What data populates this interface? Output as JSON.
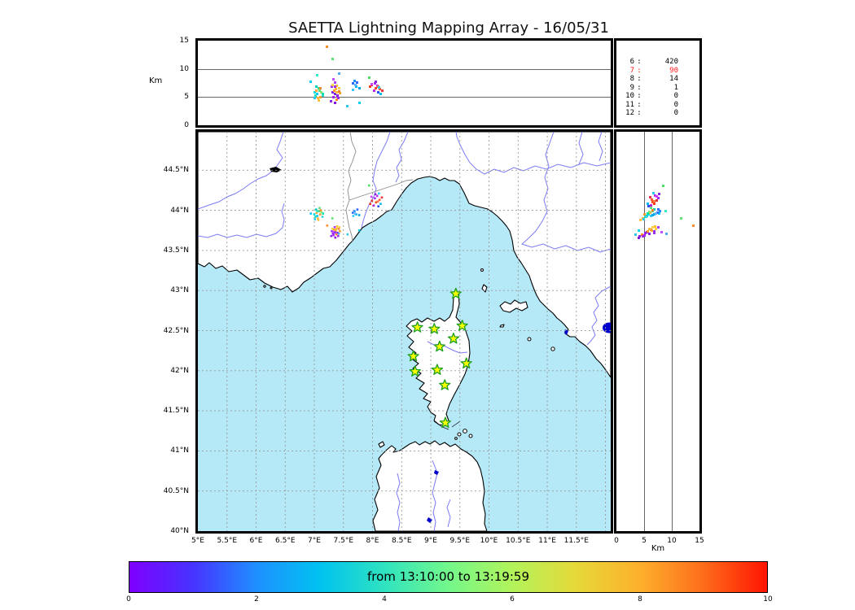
{
  "chart_data": {
    "type": "scatter",
    "title": "SAETTA Lightning Mapping Array - 16/05/31",
    "time_label": "from 13:10:00 to 13:19:59",
    "altitude_axis_label": "Km",
    "colors": {
      "sea": "#b5e9f8",
      "land": "#ffffff",
      "coast": "#000000",
      "river": "#7b7bf5",
      "border": "#8a8a8a",
      "grid": "#999999",
      "lake_dark": "#0000cc",
      "lake_black": "#000000",
      "station_fill": "#ffff00",
      "station_stroke": "#1f9f1f",
      "highlight_count": "#ff1a1a"
    },
    "top_panel": {
      "alt_range": [
        0,
        15
      ],
      "yticks": [
        [
          0,
          "0"
        ],
        [
          5,
          "5"
        ],
        [
          10,
          "10"
        ],
        [
          15,
          "15"
        ]
      ],
      "gridlines": [
        5,
        10
      ]
    },
    "counts_box": {
      "rows": [
        {
          "level": "6",
          "count": "420",
          "color": "#000000"
        },
        {
          "level": "7",
          "count": "90",
          "color": "#ff1a1a"
        },
        {
          "level": "8",
          "count": "14",
          "color": "#000000"
        },
        {
          "level": "9",
          "count": "1",
          "color": "#000000"
        },
        {
          "level": "10",
          "count": "0",
          "color": "#000000"
        },
        {
          "level": "11",
          "count": "0",
          "color": "#000000"
        },
        {
          "level": "12",
          "count": "0",
          "color": "#000000"
        }
      ]
    },
    "map_panel": {
      "lon_range": [
        5,
        12.09
      ],
      "lat_range": [
        40,
        44.98
      ],
      "grid_step": 0.5,
      "lon_ticks": [
        [
          5,
          "5°E"
        ],
        [
          5.5,
          "5.5°E"
        ],
        [
          6,
          "6°E"
        ],
        [
          6.5,
          "6.5°E"
        ],
        [
          7,
          "7°E"
        ],
        [
          7.5,
          "7.5°E"
        ],
        [
          8,
          "8°E"
        ],
        [
          8.5,
          "8.5°E"
        ],
        [
          9,
          "9°E"
        ],
        [
          9.5,
          "9.5°E"
        ],
        [
          10,
          "10°E"
        ],
        [
          10.5,
          "10.5°E"
        ],
        [
          11,
          "11°E"
        ],
        [
          11.5,
          "11.5°E"
        ]
      ],
      "lat_ticks": [
        [
          44.5,
          "44.5°N"
        ],
        [
          44,
          "44°N"
        ],
        [
          43.5,
          "43.5°N"
        ],
        [
          43,
          "43°N"
        ],
        [
          42.5,
          "42.5°N"
        ],
        [
          42,
          "42°N"
        ],
        [
          41.5,
          "41.5°N"
        ],
        [
          41,
          "41°N"
        ],
        [
          40.5,
          "40.5°N"
        ],
        [
          40,
          "40°N"
        ]
      ]
    },
    "right_panel": {
      "alt_range": [
        0,
        15
      ],
      "xticks": [
        [
          0,
          "0"
        ],
        [
          5,
          "5"
        ],
        [
          10,
          "10"
        ],
        [
          15,
          "15"
        ]
      ],
      "gridlines": [
        5,
        10
      ]
    },
    "colorbar": {
      "range": [
        0,
        10
      ],
      "ticks": [
        "0",
        "2",
        "4",
        "6",
        "8",
        "10"
      ],
      "colormap": "rainbow",
      "stops": [
        "#7f00ff",
        "#4733ff",
        "#1e90ff",
        "#00c3f0",
        "#2fe3c0",
        "#73f78b",
        "#b2f35b",
        "#e6d939",
        "#fdb02c",
        "#fd6d1b",
        "#ff1400"
      ]
    },
    "stations_lonlat": [
      [
        9.43,
        42.96
      ],
      [
        8.77,
        42.54
      ],
      [
        9.06,
        42.52
      ],
      [
        9.54,
        42.56
      ],
      [
        9.39,
        42.4
      ],
      [
        9.15,
        42.3
      ],
      [
        8.7,
        42.18
      ],
      [
        9.61,
        42.09
      ],
      [
        9.11,
        42.01
      ],
      [
        8.73,
        41.99
      ],
      [
        9.24,
        41.82
      ],
      [
        9.25,
        41.35
      ]
    ],
    "points": [
      [
        7.0,
        43.95,
        5.8,
        "#00d9e0"
      ],
      [
        7.02,
        43.92,
        5.2,
        "#27e3b2"
      ],
      [
        7.04,
        43.97,
        6.1,
        "#ffa53a"
      ],
      [
        7.06,
        43.9,
        4.8,
        "#ffb347"
      ],
      [
        7.08,
        43.99,
        6.5,
        "#39d98a"
      ],
      [
        7.05,
        43.93,
        5.5,
        "#00c8f0"
      ],
      [
        7.1,
        43.95,
        5.0,
        "#f09c2e"
      ],
      [
        7.12,
        43.98,
        5.9,
        "#8ae86e"
      ],
      [
        7.03,
        44.01,
        6.8,
        "#00d0c0"
      ],
      [
        7.07,
        43.88,
        4.4,
        "#ffc23e"
      ],
      [
        7.14,
        43.92,
        5.3,
        "#35d6d0"
      ],
      [
        7.09,
        44.03,
        6.2,
        "#63e07c"
      ],
      [
        7.01,
        43.89,
        4.9,
        "#22ccee"
      ],
      [
        7.11,
        44.0,
        6.6,
        "#f28c28"
      ],
      [
        7.15,
        43.96,
        5.6,
        "#00e0a8"
      ],
      [
        6.94,
        43.96,
        7.7,
        "#00ccff"
      ],
      [
        7.05,
        43.99,
        8.9,
        "#2ee8c8"
      ],
      [
        7.3,
        43.74,
        6.8,
        "#9b30ff"
      ],
      [
        7.32,
        43.71,
        5.9,
        "#8820ee"
      ],
      [
        7.34,
        43.76,
        6.2,
        "#ff9428"
      ],
      [
        7.33,
        43.69,
        5.0,
        "#aa22ff"
      ],
      [
        7.36,
        43.73,
        5.5,
        "#7a1fd8"
      ],
      [
        7.31,
        43.77,
        7.1,
        "#ffd23c"
      ],
      [
        7.38,
        43.7,
        4.6,
        "#ff8c1e"
      ],
      [
        7.35,
        43.79,
        7.6,
        "#b03cff"
      ],
      [
        7.37,
        43.75,
        6.4,
        "#ffae35"
      ],
      [
        7.4,
        43.72,
        5.2,
        "#9020e8"
      ],
      [
        7.33,
        43.73,
        8.2,
        "#c050ff"
      ],
      [
        7.42,
        43.77,
        6.0,
        "#ff7733"
      ],
      [
        7.29,
        43.68,
        4.2,
        "#8a2be2"
      ],
      [
        7.39,
        43.8,
        7.0,
        "#ffc030"
      ],
      [
        7.41,
        43.68,
        4.8,
        "#a128f0"
      ],
      [
        7.44,
        43.74,
        5.7,
        "#ff9f2a"
      ],
      [
        7.36,
        43.66,
        4.0,
        "#8817dd"
      ],
      [
        7.43,
        43.79,
        6.6,
        "#ffcf45"
      ],
      [
        7.42,
        43.71,
        9.1,
        "#4fa8f0"
      ],
      [
        7.35,
        43.72,
        6.9,
        "#9932ee"
      ],
      [
        7.38,
        43.77,
        5.9,
        "#ffba40"
      ],
      [
        7.31,
        43.9,
        11.7,
        "#5ee06e"
      ],
      [
        7.22,
        43.81,
        13.9,
        "#ff8c28"
      ],
      [
        7.57,
        43.7,
        3.4,
        "#30c8e8"
      ],
      [
        7.66,
        43.97,
        7.4,
        "#2d6cf6"
      ],
      [
        7.69,
        43.99,
        7.8,
        "#1e90ff"
      ],
      [
        7.72,
        43.95,
        6.9,
        "#00b2f0"
      ],
      [
        7.67,
        43.93,
        6.3,
        "#35c8f8"
      ],
      [
        7.74,
        44.01,
        7.6,
        "#3366ff"
      ],
      [
        7.7,
        43.96,
        7.1,
        "#58b6ff"
      ],
      [
        7.77,
        43.94,
        6.6,
        "#00a5e8"
      ],
      [
        7.77,
        43.75,
        4.0,
        "#00d2f0"
      ],
      [
        7.96,
        44.08,
        6.8,
        "#ff3b1d"
      ],
      [
        7.99,
        44.12,
        7.2,
        "#e03030"
      ],
      [
        8.02,
        44.06,
        6.2,
        "#c026e0"
      ],
      [
        8.04,
        44.15,
        7.5,
        "#a428ff"
      ],
      [
        8.06,
        44.1,
        6.6,
        "#ff4422"
      ],
      [
        8.08,
        44.18,
        7.0,
        "#b832f0"
      ],
      [
        8.1,
        44.05,
        5.8,
        "#2e4df0"
      ],
      [
        8.12,
        44.13,
        6.4,
        "#ff5533"
      ],
      [
        8.05,
        44.2,
        7.7,
        "#8e24dd"
      ],
      [
        8.14,
        44.08,
        5.6,
        "#00bbee"
      ],
      [
        8.09,
        44.11,
        6.9,
        "#ff7744"
      ],
      [
        7.98,
        44.17,
        7.3,
        "#d040ff"
      ],
      [
        8.16,
        44.16,
        6.1,
        "#ee3344"
      ],
      [
        8.11,
        44.21,
        6.7,
        "#22ccf0"
      ],
      [
        7.94,
        44.31,
        8.4,
        "#4ede6a"
      ]
    ]
  }
}
